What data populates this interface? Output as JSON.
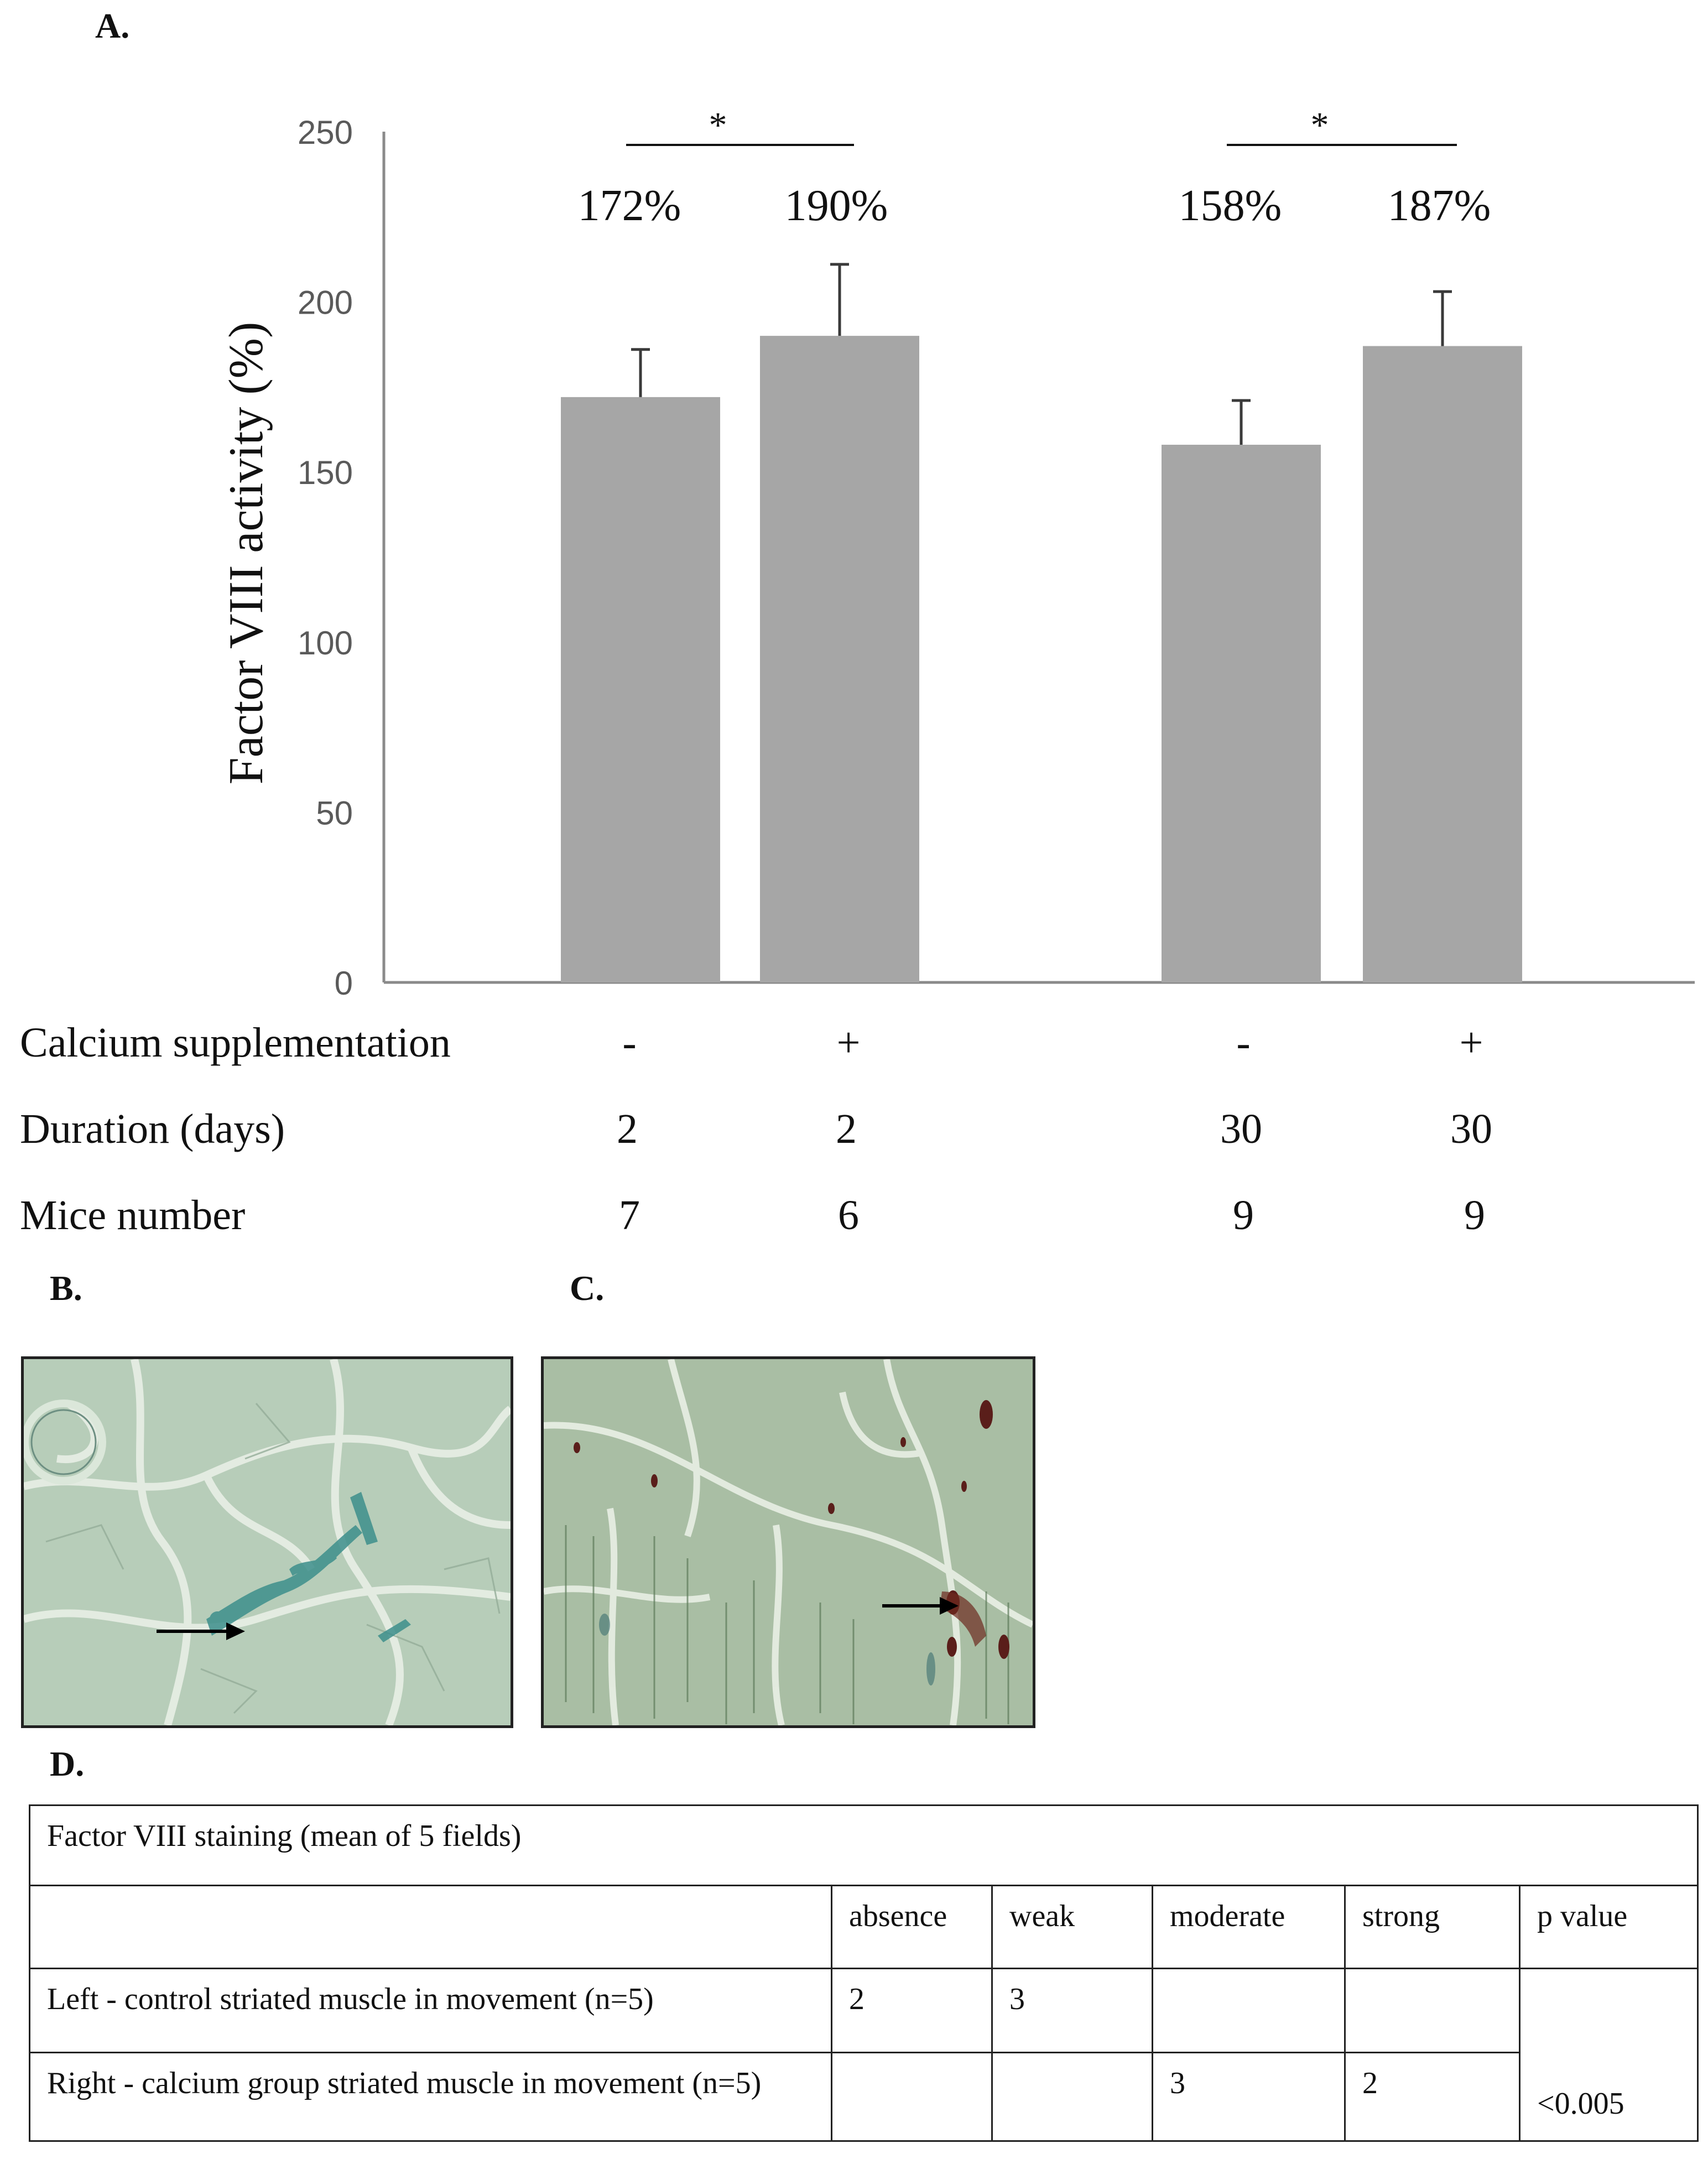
{
  "panel_a": {
    "letter": "A.",
    "chart_data": {
      "type": "bar",
      "categories": [
        "- / 2 days / 7 mice",
        "+ / 2 days / 6 mice",
        "- / 30 days / 9 mice",
        "+ / 30 days / 9 mice"
      ],
      "values": [
        172,
        190,
        158,
        187
      ],
      "error_upper": [
        186,
        211,
        171,
        203
      ],
      "data_labels": [
        "172%",
        "190%",
        "158%",
        "187%"
      ],
      "ylabel": "Factor VIII activity (%)",
      "ylim": [
        0,
        250
      ],
      "yticks": [
        "0",
        "50",
        "100",
        "150",
        "200",
        "250"
      ],
      "bar_color": "#a6a6a6",
      "significance": [
        {
          "between": [
            0,
            1
          ],
          "mark": "*"
        },
        {
          "between": [
            2,
            3
          ],
          "mark": "*"
        }
      ],
      "grid": false
    },
    "rows": [
      {
        "label": "Calcium supplementation",
        "values": [
          "-",
          "+",
          "-",
          "+"
        ]
      },
      {
        "label": "Duration (days)",
        "values": [
          "2",
          "2",
          "30",
          "30"
        ]
      },
      {
        "label": "Mice number",
        "values": [
          "7",
          "6",
          "9",
          "9"
        ]
      }
    ]
  },
  "panel_b": {
    "letter": "B.",
    "stain_color": "#3d8f8c",
    "background": "#b7cdb9"
  },
  "panel_c": {
    "letter": "C.",
    "stain_color": "#5a1e1a",
    "background": "#a9bea4"
  },
  "panel_d": {
    "letter": "D.",
    "table_title": "Factor VIII staining  (mean of 5 fields)",
    "headers": [
      "",
      "absence",
      "weak",
      "moderate",
      "strong",
      "p value"
    ],
    "rows": [
      {
        "label": "Left  - control striated muscle in  movement  (n=5)",
        "cells": [
          "2",
          "3",
          "",
          ""
        ]
      },
      {
        "label": "Right  - calcium group striated muscle in movement  (n=5)",
        "cells": [
          "",
          "",
          "3",
          "2"
        ]
      }
    ],
    "p_value": "<0.005"
  }
}
